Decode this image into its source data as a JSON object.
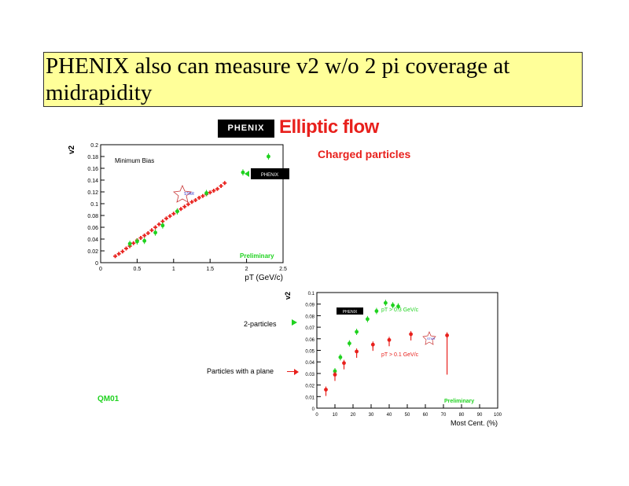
{
  "slide": {
    "title": "PHENIX also can measure v2 w/o 2 pi coverage at midrapidity",
    "logo": "PHENIX",
    "headline": "Elliptic flow",
    "subheading": "Charged particles",
    "left_note": "QM01",
    "annot_two_particles": "2-particles",
    "annot_plane": "Particles with a plane",
    "colors": {
      "title_bg": "#ffff99",
      "red": "#e8201c",
      "green": "#1fd21f",
      "frame": "#000000"
    }
  },
  "chart_data": [
    {
      "type": "scatter",
      "ylabel": "v2",
      "xlabel": "pT (GeV/c)",
      "xlim": [
        0,
        2.5
      ],
      "ylim": [
        0,
        0.2
      ],
      "xticks": [
        "0",
        "0.5",
        "1",
        "1.5",
        "2",
        "2.5"
      ],
      "yticks": [
        "0",
        "0.02",
        "0.04",
        "0.06",
        "0.08",
        "0.1",
        "0.12",
        "0.14",
        "0.16",
        "0.18",
        "0.2"
      ],
      "annotations": [
        "Minimum Bias",
        "Preliminary"
      ],
      "legend_icons": [
        "STAR",
        "PHENIX"
      ],
      "series": [
        {
          "color": "#e8201c",
          "marker": "plus",
          "x": [
            0.2,
            0.25,
            0.3,
            0.35,
            0.4,
            0.45,
            0.5,
            0.55,
            0.6,
            0.65,
            0.7,
            0.75,
            0.8,
            0.85,
            0.9,
            0.95,
            1.0,
            1.05,
            1.1,
            1.15,
            1.2,
            1.25,
            1.3,
            1.35,
            1.4,
            1.45,
            1.5,
            1.55,
            1.6,
            1.65,
            1.7
          ],
          "y": [
            0.011,
            0.015,
            0.019,
            0.024,
            0.028,
            0.033,
            0.038,
            0.042,
            0.046,
            0.05,
            0.055,
            0.06,
            0.065,
            0.07,
            0.075,
            0.079,
            0.083,
            0.087,
            0.091,
            0.095,
            0.099,
            0.103,
            0.106,
            0.11,
            0.113,
            0.116,
            0.119,
            0.122,
            0.125,
            0.13,
            0.135
          ]
        },
        {
          "color": "#1fd21f",
          "marker": "dot",
          "x": [
            0.4,
            0.5,
            0.6,
            0.75,
            0.85,
            1.05,
            1.45,
            1.95,
            2.3
          ],
          "y": [
            0.032,
            0.036,
            0.037,
            0.051,
            0.063,
            0.087,
            0.118,
            0.153,
            0.18
          ]
        }
      ]
    },
    {
      "type": "scatter",
      "ylabel": "v2",
      "xlabel": "Most Cent. (%)",
      "xlim": [
        0,
        100
      ],
      "ylim": [
        0,
        0.1
      ],
      "xticks": [
        "0",
        "10",
        "20",
        "30",
        "40",
        "50",
        "60",
        "70",
        "80",
        "90",
        "100"
      ],
      "yticks": [
        "0",
        "0.01",
        "0.02",
        "0.03",
        "0.04",
        "0.05",
        "0.06",
        "0.07",
        "0.08",
        "0.09",
        "0.1"
      ],
      "annotations": [
        "pT > 0.3 GeV/c",
        "pT > 0.1 GeV/c",
        "Preliminary"
      ],
      "legend_icons": [
        "PHENIX",
        "STAR"
      ],
      "series": [
        {
          "color": "#1fd21f",
          "x": [
            10,
            13,
            18,
            22,
            28,
            33,
            38,
            42,
            45
          ],
          "y": [
            0.032,
            0.044,
            0.056,
            0.066,
            0.077,
            0.084,
            0.091,
            0.089,
            0.088
          ]
        },
        {
          "color": "#e8201c",
          "x": [
            5,
            10,
            15,
            22,
            31,
            40,
            52,
            72
          ],
          "y": [
            0.016,
            0.029,
            0.039,
            0.049,
            0.055,
            0.059,
            0.064,
            0.063
          ]
        }
      ]
    }
  ]
}
